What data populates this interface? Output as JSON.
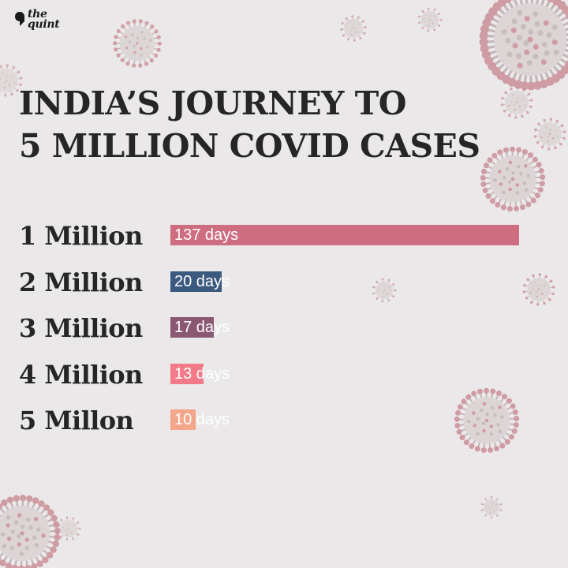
{
  "brand": {
    "logo_text": "the\nquint"
  },
  "title": {
    "line1": "INDIA’S JOURNEY TO",
    "line2": "5 MILLION COVID CASES"
  },
  "chart_data": {
    "type": "bar",
    "orientation": "horizontal",
    "categories": [
      "1 Million",
      "2 Million",
      "3 Million",
      "4 Million",
      "5 Millon"
    ],
    "values": [
      137,
      20,
      17,
      13,
      10
    ],
    "value_labels": [
      "137 days",
      "20 days",
      "17 days",
      "13 days",
      "10 days"
    ],
    "colors": [
      "#cf6d80",
      "#3c5a80",
      "#8b5873",
      "#f27a89",
      "#f4a68a"
    ],
    "title": "INDIA’S JOURNEY TO 5 MILLION COVID CASES",
    "xlabel": "",
    "ylabel": ""
  },
  "decoration": {
    "icon": "coronavirus-icon",
    "color": "#c98a93"
  }
}
